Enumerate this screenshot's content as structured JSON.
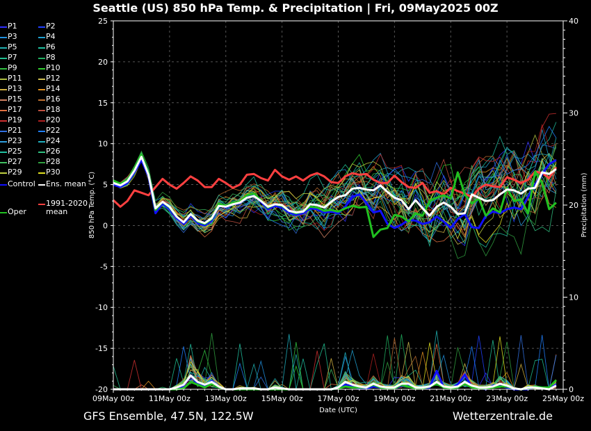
{
  "title": "Seattle  (US)  850 hPa Temp. & Precipitation | Fri, 09May2025 00Z",
  "footer_left": "GFS Ensemble, 47.5N, 122.5W",
  "footer_right": "Wetterzentrale.de",
  "colors": {
    "background": "#000000",
    "axis": "#ffffff",
    "control": "#1010ff",
    "oper": "#20c020",
    "ens_mean": "#ffffff",
    "climate_mean": "#ff4040"
  },
  "legend": [
    {
      "label": "P1",
      "color": "#3030ff"
    },
    {
      "label": "P2",
      "color": "#2040ff"
    },
    {
      "label": "P3",
      "color": "#2090e0"
    },
    {
      "label": "P4",
      "color": "#20a0d0"
    },
    {
      "label": "P5",
      "color": "#20b0b0"
    },
    {
      "label": "P6",
      "color": "#20c0a0"
    },
    {
      "label": "P7",
      "color": "#20c090"
    },
    {
      "label": "P8",
      "color": "#20b060"
    },
    {
      "label": "P9",
      "color": "#30c040"
    },
    {
      "label": "P10",
      "color": "#30d030"
    },
    {
      "label": "P11",
      "color": "#b0c040"
    },
    {
      "label": "P12",
      "color": "#d0c050"
    },
    {
      "label": "P13",
      "color": "#d0b040"
    },
    {
      "label": "P14",
      "color": "#e09020"
    },
    {
      "label": "P15",
      "color": "#d08060"
    },
    {
      "label": "P16",
      "color": "#c07030"
    },
    {
      "label": "P17",
      "color": "#e07040"
    },
    {
      "label": "P18",
      "color": "#c05040"
    },
    {
      "label": "P19",
      "color": "#d03030"
    },
    {
      "label": "P20",
      "color": "#b02020"
    },
    {
      "label": "P21",
      "color": "#3070e0"
    },
    {
      "label": "P22",
      "color": "#2080ff"
    },
    {
      "label": "P23",
      "color": "#30a0e0"
    },
    {
      "label": "P24",
      "color": "#20b0c0"
    },
    {
      "label": "P25",
      "color": "#20c0a0"
    },
    {
      "label": "P26",
      "color": "#30c080"
    },
    {
      "label": "P27",
      "color": "#40c060"
    },
    {
      "label": "P28",
      "color": "#30a040"
    },
    {
      "label": "P29",
      "color": "#c0d040"
    },
    {
      "label": "P30",
      "color": "#e0e020"
    },
    {
      "label": "Control",
      "color": "#1010ff"
    },
    {
      "label": "Ens. mean",
      "color": "#ffffff"
    },
    {
      "label": "Oper",
      "color": "#20c020"
    },
    {
      "label": "1991-2020\nmean",
      "color": "#ff4040"
    }
  ],
  "chart_data": {
    "type": "line",
    "xlabel": "Date (UTC)",
    "ylabel_left": "850 hPa Temp. (°C)",
    "ylabel_right": "Precipitation (mm)",
    "x_start": "09May 00z",
    "step_hours": 6,
    "xticks": [
      "09May 00z",
      "11May 00z",
      "13May 00z",
      "15May 00z",
      "17May 00z",
      "19May 00z",
      "21May 00z",
      "23May 00z",
      "25May 00z"
    ],
    "ylim_left": [
      -20,
      25
    ],
    "yticks_left": [
      -20,
      -15,
      -10,
      -5,
      0,
      5,
      10,
      15,
      20,
      25
    ],
    "ylim_right": [
      0,
      40
    ],
    "yticks_right": [
      0,
      10,
      20,
      30,
      40
    ],
    "grid": true,
    "temperature_series": [
      {
        "name": "Control",
        "values": [
          5,
          4.7,
          5.2,
          6.5,
          8,
          6,
          1.5,
          2.7,
          2,
          0.9,
          0.2,
          1.2,
          0.3,
          0,
          0.6,
          2.5,
          2.2,
          2.6,
          2.7,
          3.5,
          3.7,
          2.9,
          2,
          2.4,
          2.2,
          1.6,
          1.3,
          1.5,
          2.1,
          2,
          1.6,
          1.7,
          1.5,
          2.3,
          3.5,
          3.8,
          2.8,
          1.6,
          1.8,
          0.2,
          -0.3,
          0.1,
          0.7,
          0.6,
          0.2,
          0.4,
          1.1,
          0.5,
          -0.3,
          0.8,
          1.4,
          -0.2,
          -0.3,
          1.2,
          1.7,
          1.5,
          2,
          2.2,
          2,
          3.5,
          5,
          6.3,
          7.5,
          8
        ]
      },
      {
        "name": "Oper",
        "values": [
          5.5,
          5.1,
          5.5,
          6.9,
          8.6,
          6.3,
          1.9,
          2.9,
          2.2,
          1.1,
          0.4,
          1.4,
          0.5,
          0.2,
          0.8,
          2.7,
          2.4,
          2.8,
          2.9,
          3.7,
          3.9,
          3.1,
          2.2,
          2.6,
          2.4,
          1.8,
          1.5,
          1.7,
          2.3,
          2.2,
          1.8,
          1.9,
          1.7,
          2.1,
          2.4,
          2.2,
          2.3,
          -1.4,
          -0.5,
          -0.3,
          1.3,
          1.1,
          0.5,
          1.5,
          1.2,
          3,
          3.4,
          3.7,
          3.3,
          6.5,
          3.8,
          2.7,
          3.3,
          1.2,
          2.1,
          1.6,
          4.6,
          3,
          3.2,
          1.5,
          6.6,
          5.2,
          2,
          2.8
        ]
      },
      {
        "name": "Ens. mean",
        "values": [
          5.2,
          4.9,
          5.4,
          6.7,
          8.4,
          6.2,
          2.1,
          2.9,
          2.3,
          1.1,
          0.4,
          1.4,
          0.6,
          0.3,
          0.9,
          2.4,
          2.3,
          2.6,
          2.8,
          3.4,
          3.6,
          3,
          2.3,
          2.6,
          2.5,
          1.8,
          1.6,
          1.7,
          2.6,
          2.5,
          2.2,
          2.9,
          3.5,
          3.7,
          4.5,
          4.6,
          4.4,
          4.3,
          4.9,
          4.1,
          3.4,
          3.1,
          2,
          3.1,
          2.1,
          1.2,
          2.3,
          2.8,
          2.3,
          1.4,
          1.5,
          3.8,
          3.4,
          3,
          3.1,
          3.8,
          4.4,
          4.3,
          3.9,
          4.5,
          4.6,
          6.5,
          6.3,
          6.9
        ]
      },
      {
        "name": "1991-2020 mean",
        "values": [
          3.1,
          2.3,
          3,
          4.3,
          4,
          3.7,
          4.7,
          5.7,
          5,
          4.5,
          5.2,
          6,
          5.5,
          4.7,
          4.7,
          5.7,
          5.2,
          4.6,
          5,
          6.2,
          6.3,
          5.8,
          5.5,
          6.8,
          6,
          5.6,
          6,
          5.5,
          6.1,
          6.4,
          6,
          5.3,
          5.2,
          6,
          6.4,
          6.2,
          6.3,
          5.6,
          5.2,
          5.2,
          6.1,
          5.3,
          4.7,
          4.6,
          5.2,
          4,
          4.2,
          3.8,
          4.6,
          4.2,
          3.9,
          3.5,
          4.5,
          5,
          4.8,
          4.7,
          5.9,
          5.6,
          5.2,
          5.6,
          6.6,
          6.4,
          5.8,
          7.1
        ]
      }
    ],
    "precipitation_series": [
      {
        "name": "Ens. mean",
        "values": [
          0,
          0,
          0,
          0,
          0,
          0,
          0,
          0,
          0,
          0.2,
          0.5,
          1.5,
          0.8,
          0.5,
          0.8,
          0.3,
          0,
          0,
          0.1,
          0.1,
          0.1,
          0,
          0,
          0.2,
          0.1,
          0,
          0,
          0,
          0,
          0,
          0,
          0,
          0.2,
          0.8,
          0.5,
          0.3,
          0.2,
          0.6,
          0.3,
          0.2,
          0.2,
          0.6,
          0.6,
          0.2,
          0.2,
          0.3,
          0.8,
          0.3,
          0.2,
          0.3,
          0.8,
          0.4,
          0.2,
          0.2,
          0.3,
          0.6,
          0.4,
          0.1,
          0,
          0.2,
          0.2,
          0.1,
          0,
          0.4
        ]
      },
      {
        "name": "Control",
        "values": [
          0,
          0,
          0,
          0,
          0,
          0,
          0,
          0,
          0,
          0,
          0.4,
          1.5,
          0.6,
          0.3,
          0.9,
          0.2,
          0,
          0,
          0,
          0,
          0,
          0,
          0,
          0,
          0,
          0,
          0,
          0,
          0,
          0,
          0,
          0,
          0.1,
          0.5,
          0.3,
          0.1,
          0.1,
          0.3,
          0.2,
          0.1,
          0.1,
          0.4,
          0.4,
          0.1,
          0.1,
          0.2,
          2,
          0.2,
          0.1,
          0.5,
          1.6,
          0.2,
          0.2,
          0,
          0.4,
          0.4,
          0.2,
          0,
          0,
          0,
          0.3,
          0.2,
          0.1,
          0.5
        ]
      },
      {
        "name": "Oper",
        "values": [
          0,
          0,
          0,
          0,
          0,
          0,
          0,
          0,
          0,
          0,
          0.1,
          0.8,
          0.5,
          0.2,
          0.6,
          0.2,
          0,
          0,
          0,
          0,
          0,
          0,
          0,
          0,
          0,
          0,
          0,
          0,
          0,
          0,
          0,
          0,
          0.1,
          0.3,
          0.2,
          0.2,
          0.2,
          0.5,
          0.2,
          0.1,
          0.1,
          0.5,
          0.3,
          0.1,
          0.1,
          0.3,
          0.6,
          0.2,
          0.1,
          0.2,
          0.6,
          0.2,
          0.1,
          0.1,
          0.2,
          0.3,
          0.3,
          0.1,
          0,
          0.1,
          0.3,
          0.2,
          0.2,
          1
        ]
      }
    ]
  }
}
